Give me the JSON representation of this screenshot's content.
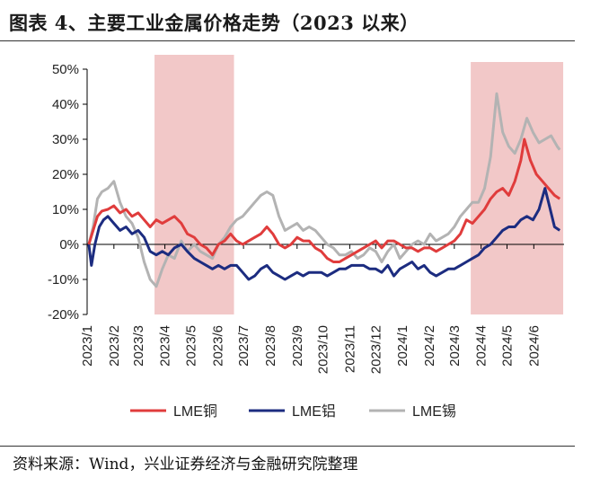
{
  "header": {
    "title": "图表 4、主要工业金属价格走势（2023 以来）"
  },
  "footer": {
    "source": "资料来源：Wind，兴业证券经济与金融研究院整理"
  },
  "chart_data": {
    "type": "line",
    "title": "",
    "xlabel": "",
    "ylabel": "",
    "ylim": [
      -0.2,
      0.5
    ],
    "ytick_labels": [
      "-20%",
      "-10%",
      "0%",
      "10%",
      "20%",
      "30%",
      "40%",
      "50%"
    ],
    "xticks": [
      "2023/1",
      "2023/2",
      "2023/3",
      "2023/4",
      "2023/5",
      "2023/6",
      "2023/7",
      "2023/8",
      "2023/9",
      "2023/10",
      "2023/11",
      "2023/12",
      "2024/1",
      "2024/2",
      "2024/3",
      "2024/4",
      "2024/5",
      "2024/6"
    ],
    "grid": false,
    "legend_position": "bottom",
    "colors": {
      "copper": "#e03c3c",
      "aluminum": "#1c2c80",
      "tin": "#b3b3b3",
      "shade": "#f2c8c8"
    },
    "shaded_periods": [
      {
        "start": "2023/3/20",
        "end": "2023/6/20"
      },
      {
        "start": "2024/3/20",
        "end": "2024/7/5"
      }
    ],
    "series": [
      {
        "name": "LME铜",
        "key": "copper",
        "points": [
          [
            "2023/1/3",
            0.0
          ],
          [
            "2023/1/8",
            0.04
          ],
          [
            "2023/1/13",
            0.08
          ],
          [
            "2023/1/18",
            0.095
          ],
          [
            "2023/1/25",
            0.1
          ],
          [
            "2023/2/1",
            0.11
          ],
          [
            "2023/2/8",
            0.09
          ],
          [
            "2023/2/15",
            0.1
          ],
          [
            "2023/2/22",
            0.08
          ],
          [
            "2023/3/1",
            0.09
          ],
          [
            "2023/3/8",
            0.07
          ],
          [
            "2023/3/15",
            0.05
          ],
          [
            "2023/3/22",
            0.07
          ],
          [
            "2023/3/29",
            0.06
          ],
          [
            "2023/4/5",
            0.07
          ],
          [
            "2023/4/12",
            0.08
          ],
          [
            "2023/4/20",
            0.06
          ],
          [
            "2023/4/27",
            0.03
          ],
          [
            "2023/5/5",
            0.02
          ],
          [
            "2023/5/12",
            0.0
          ],
          [
            "2023/5/19",
            -0.01
          ],
          [
            "2023/5/26",
            -0.03
          ],
          [
            "2023/6/2",
            0.0
          ],
          [
            "2023/6/9",
            0.01
          ],
          [
            "2023/6/16",
            0.03
          ],
          [
            "2023/6/23",
            0.01
          ],
          [
            "2023/6/30",
            0.0
          ],
          [
            "2023/7/7",
            0.01
          ],
          [
            "2023/7/14",
            0.02
          ],
          [
            "2023/7/21",
            0.03
          ],
          [
            "2023/7/28",
            0.05
          ],
          [
            "2023/8/4",
            0.03
          ],
          [
            "2023/8/11",
            0.0
          ],
          [
            "2023/8/18",
            -0.01
          ],
          [
            "2023/8/25",
            0.0
          ],
          [
            "2023/9/1",
            0.02
          ],
          [
            "2023/9/8",
            0.01
          ],
          [
            "2023/9/15",
            0.01
          ],
          [
            "2023/9/22",
            -0.01
          ],
          [
            "2023/9/29",
            -0.02
          ],
          [
            "2023/10/6",
            -0.04
          ],
          [
            "2023/10/13",
            -0.05
          ],
          [
            "2023/10/20",
            -0.05
          ],
          [
            "2023/10/27",
            -0.04
          ],
          [
            "2023/11/3",
            -0.03
          ],
          [
            "2023/11/10",
            -0.02
          ],
          [
            "2023/11/17",
            -0.01
          ],
          [
            "2023/11/24",
            0.0
          ],
          [
            "2023/12/1",
            0.01
          ],
          [
            "2023/12/8",
            -0.01
          ],
          [
            "2023/12/15",
            0.01
          ],
          [
            "2023/12/22",
            0.01
          ],
          [
            "2023/12/29",
            0.0
          ],
          [
            "2024/1/5",
            -0.01
          ],
          [
            "2024/1/12",
            -0.01
          ],
          [
            "2024/1/19",
            -0.02
          ],
          [
            "2024/1/26",
            -0.01
          ],
          [
            "2024/2/2",
            -0.01
          ],
          [
            "2024/2/9",
            -0.02
          ],
          [
            "2024/2/16",
            -0.01
          ],
          [
            "2024/2/23",
            0.0
          ],
          [
            "2024/3/1",
            0.01
          ],
          [
            "2024/3/8",
            0.03
          ],
          [
            "2024/3/15",
            0.07
          ],
          [
            "2024/3/22",
            0.06
          ],
          [
            "2024/3/29",
            0.08
          ],
          [
            "2024/4/5",
            0.1
          ],
          [
            "2024/4/12",
            0.13
          ],
          [
            "2024/4/19",
            0.15
          ],
          [
            "2024/4/26",
            0.16
          ],
          [
            "2024/5/3",
            0.14
          ],
          [
            "2024/5/10",
            0.18
          ],
          [
            "2024/5/17",
            0.24
          ],
          [
            "2024/5/21",
            0.3
          ],
          [
            "2024/5/28",
            0.24
          ],
          [
            "2024/6/4",
            0.2
          ],
          [
            "2024/6/11",
            0.18
          ],
          [
            "2024/6/18",
            0.16
          ],
          [
            "2024/6/25",
            0.14
          ],
          [
            "2024/7/1",
            0.13
          ]
        ]
      },
      {
        "name": "LME铝",
        "key": "aluminum",
        "points": [
          [
            "2023/1/3",
            0.0
          ],
          [
            "2023/1/6",
            -0.06
          ],
          [
            "2023/1/10",
            0.0
          ],
          [
            "2023/1/15",
            0.05
          ],
          [
            "2023/1/20",
            0.07
          ],
          [
            "2023/1/25",
            0.08
          ],
          [
            "2023/2/1",
            0.06
          ],
          [
            "2023/2/8",
            0.04
          ],
          [
            "2023/2/15",
            0.05
          ],
          [
            "2023/2/22",
            0.03
          ],
          [
            "2023/3/1",
            0.04
          ],
          [
            "2023/3/8",
            0.02
          ],
          [
            "2023/3/15",
            -0.02
          ],
          [
            "2023/3/22",
            -0.03
          ],
          [
            "2023/3/29",
            -0.02
          ],
          [
            "2023/4/5",
            -0.03
          ],
          [
            "2023/4/12",
            -0.01
          ],
          [
            "2023/4/20",
            0.0
          ],
          [
            "2023/4/27",
            -0.02
          ],
          [
            "2023/5/5",
            -0.04
          ],
          [
            "2023/5/12",
            -0.05
          ],
          [
            "2023/5/19",
            -0.06
          ],
          [
            "2023/5/26",
            -0.07
          ],
          [
            "2023/6/2",
            -0.06
          ],
          [
            "2023/6/9",
            -0.07
          ],
          [
            "2023/6/16",
            -0.06
          ],
          [
            "2023/6/23",
            -0.06
          ],
          [
            "2023/6/30",
            -0.08
          ],
          [
            "2023/7/7",
            -0.1
          ],
          [
            "2023/7/14",
            -0.09
          ],
          [
            "2023/7/21",
            -0.07
          ],
          [
            "2023/7/28",
            -0.06
          ],
          [
            "2023/8/4",
            -0.08
          ],
          [
            "2023/8/11",
            -0.09
          ],
          [
            "2023/8/18",
            -0.1
          ],
          [
            "2023/8/25",
            -0.09
          ],
          [
            "2023/9/1",
            -0.08
          ],
          [
            "2023/9/8",
            -0.09
          ],
          [
            "2023/9/15",
            -0.08
          ],
          [
            "2023/9/22",
            -0.08
          ],
          [
            "2023/9/29",
            -0.08
          ],
          [
            "2023/10/6",
            -0.09
          ],
          [
            "2023/10/13",
            -0.08
          ],
          [
            "2023/10/20",
            -0.07
          ],
          [
            "2023/10/27",
            -0.07
          ],
          [
            "2023/11/3",
            -0.06
          ],
          [
            "2023/11/10",
            -0.06
          ],
          [
            "2023/11/17",
            -0.06
          ],
          [
            "2023/11/24",
            -0.07
          ],
          [
            "2023/12/1",
            -0.07
          ],
          [
            "2023/12/8",
            -0.08
          ],
          [
            "2023/12/15",
            -0.06
          ],
          [
            "2023/12/22",
            -0.09
          ],
          [
            "2023/12/29",
            -0.07
          ],
          [
            "2024/1/5",
            -0.06
          ],
          [
            "2024/1/12",
            -0.05
          ],
          [
            "2024/1/19",
            -0.07
          ],
          [
            "2024/1/26",
            -0.06
          ],
          [
            "2024/2/2",
            -0.08
          ],
          [
            "2024/2/9",
            -0.09
          ],
          [
            "2024/2/16",
            -0.08
          ],
          [
            "2024/2/23",
            -0.07
          ],
          [
            "2024/3/1",
            -0.07
          ],
          [
            "2024/3/8",
            -0.06
          ],
          [
            "2024/3/15",
            -0.05
          ],
          [
            "2024/3/22",
            -0.04
          ],
          [
            "2024/3/29",
            -0.03
          ],
          [
            "2024/4/5",
            -0.01
          ],
          [
            "2024/4/12",
            0.0
          ],
          [
            "2024/4/19",
            0.02
          ],
          [
            "2024/4/26",
            0.04
          ],
          [
            "2024/5/3",
            0.05
          ],
          [
            "2024/5/10",
            0.05
          ],
          [
            "2024/5/17",
            0.07
          ],
          [
            "2024/5/24",
            0.08
          ],
          [
            "2024/5/31",
            0.07
          ],
          [
            "2024/6/7",
            0.1
          ],
          [
            "2024/6/14",
            0.16
          ],
          [
            "2024/6/18",
            0.12
          ],
          [
            "2024/6/25",
            0.05
          ],
          [
            "2024/7/1",
            0.04
          ]
        ]
      },
      {
        "name": "LME锡",
        "key": "tin",
        "points": [
          [
            "2023/1/3",
            0.0
          ],
          [
            "2023/1/8",
            0.05
          ],
          [
            "2023/1/13",
            0.13
          ],
          [
            "2023/1/18",
            0.15
          ],
          [
            "2023/1/25",
            0.16
          ],
          [
            "2023/2/1",
            0.18
          ],
          [
            "2023/2/8",
            0.12
          ],
          [
            "2023/2/15",
            0.08
          ],
          [
            "2023/2/22",
            0.06
          ],
          [
            "2023/3/1",
            0.02
          ],
          [
            "2023/3/8",
            -0.05
          ],
          [
            "2023/3/15",
            -0.1
          ],
          [
            "2023/3/22",
            -0.12
          ],
          [
            "2023/3/29",
            -0.07
          ],
          [
            "2023/4/5",
            -0.03
          ],
          [
            "2023/4/12",
            -0.04
          ],
          [
            "2023/4/20",
            0.01
          ],
          [
            "2023/4/27",
            -0.02
          ],
          [
            "2023/5/5",
            0.0
          ],
          [
            "2023/5/12",
            -0.02
          ],
          [
            "2023/5/19",
            -0.03
          ],
          [
            "2023/5/26",
            -0.04
          ],
          [
            "2023/6/2",
            0.0
          ],
          [
            "2023/6/9",
            0.02
          ],
          [
            "2023/6/16",
            0.05
          ],
          [
            "2023/6/23",
            0.07
          ],
          [
            "2023/6/30",
            0.08
          ],
          [
            "2023/7/7",
            0.1
          ],
          [
            "2023/7/14",
            0.12
          ],
          [
            "2023/7/21",
            0.14
          ],
          [
            "2023/7/28",
            0.15
          ],
          [
            "2023/8/4",
            0.14
          ],
          [
            "2023/8/11",
            0.08
          ],
          [
            "2023/8/18",
            0.04
          ],
          [
            "2023/8/25",
            0.05
          ],
          [
            "2023/9/1",
            0.06
          ],
          [
            "2023/9/8",
            0.04
          ],
          [
            "2023/9/15",
            0.05
          ],
          [
            "2023/9/22",
            0.04
          ],
          [
            "2023/9/29",
            0.02
          ],
          [
            "2023/10/6",
            0.0
          ],
          [
            "2023/10/13",
            -0.01
          ],
          [
            "2023/10/20",
            -0.03
          ],
          [
            "2023/10/27",
            -0.03
          ],
          [
            "2023/11/3",
            -0.02
          ],
          [
            "2023/11/10",
            -0.04
          ],
          [
            "2023/11/17",
            -0.03
          ],
          [
            "2023/11/24",
            -0.01
          ],
          [
            "2023/12/1",
            -0.02
          ],
          [
            "2023/12/8",
            -0.05
          ],
          [
            "2023/12/15",
            -0.02
          ],
          [
            "2023/12/22",
            0.0
          ],
          [
            "2023/12/29",
            -0.04
          ],
          [
            "2024/1/5",
            -0.02
          ],
          [
            "2024/1/12",
            0.0
          ],
          [
            "2024/1/19",
            0.01
          ],
          [
            "2024/1/26",
            0.0
          ],
          [
            "2024/2/2",
            0.03
          ],
          [
            "2024/2/9",
            0.01
          ],
          [
            "2024/2/16",
            0.02
          ],
          [
            "2024/2/23",
            0.03
          ],
          [
            "2024/3/1",
            0.05
          ],
          [
            "2024/3/8",
            0.08
          ],
          [
            "2024/3/15",
            0.1
          ],
          [
            "2024/3/22",
            0.12
          ],
          [
            "2024/3/29",
            0.12
          ],
          [
            "2024/4/5",
            0.16
          ],
          [
            "2024/4/12",
            0.25
          ],
          [
            "2024/4/19",
            0.43
          ],
          [
            "2024/4/26",
            0.32
          ],
          [
            "2024/5/3",
            0.28
          ],
          [
            "2024/5/10",
            0.26
          ],
          [
            "2024/5/17",
            0.3
          ],
          [
            "2024/5/24",
            0.36
          ],
          [
            "2024/5/31",
            0.32
          ],
          [
            "2024/6/7",
            0.29
          ],
          [
            "2024/6/14",
            0.3
          ],
          [
            "2024/6/21",
            0.31
          ],
          [
            "2024/6/28",
            0.28
          ],
          [
            "2024/7/1",
            0.27
          ]
        ]
      }
    ]
  }
}
